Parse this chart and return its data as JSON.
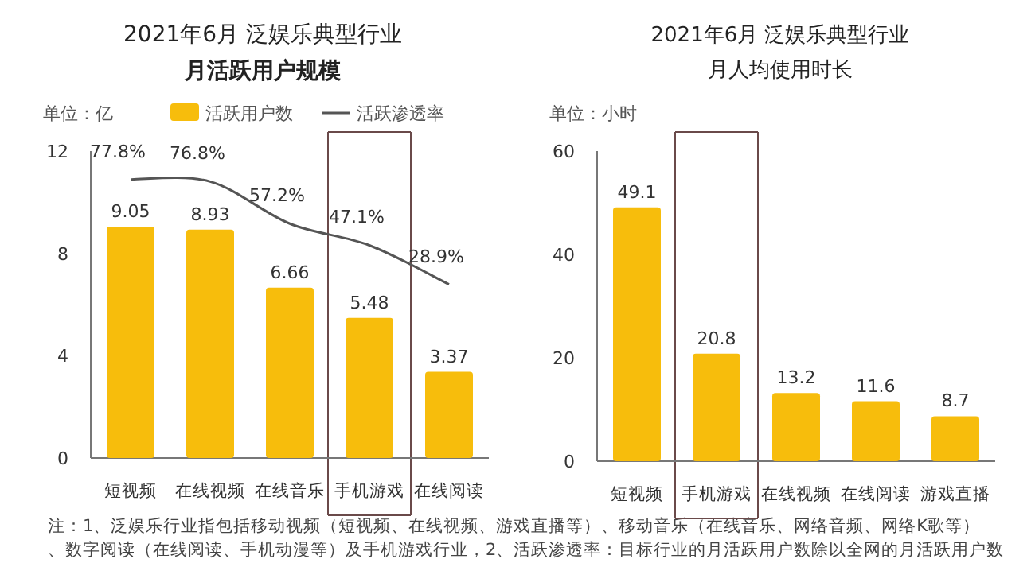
{
  "chart_data": [
    {
      "type": "bar",
      "title": "2021年6月 泛娱乐典型行业",
      "subtitle": "月活跃用户规模",
      "ylabel": "单位：亿",
      "categories": [
        "短视频",
        "在线视频",
        "在线音乐",
        "手机游戏",
        "在线阅读"
      ],
      "series": [
        {
          "name": "活跃用户数",
          "color": "#f7bd0c",
          "values": [
            9.05,
            8.93,
            6.66,
            5.48,
            3.37
          ]
        },
        {
          "name": "活跃渗透率",
          "type": "line",
          "axis": "y2",
          "color": "#555555",
          "values": [
            77.8,
            76.8,
            57.2,
            47.1,
            28.9
          ],
          "value_labels": [
            "77.8%",
            "76.8%",
            "57.2%",
            "47.1%",
            "28.9%"
          ]
        }
      ],
      "ylim": [
        0,
        12
      ],
      "yticks": [
        0,
        4,
        8,
        12
      ],
      "y2lim": [
        -52,
        91
      ],
      "data_labels": true,
      "legend": "top",
      "annotations": [
        "注：1、泛娱乐行业指包括移动视频（短视频、在线视频、游戏直播等）、移动音乐（在线音乐、网络音频、网络K歌等）、数字阅读（在线阅读、手机动漫等）及手机游戏行业，2、活跃渗透率：目标行业的月活跃用户数除以全网的月活跃用户数"
      ]
    },
    {
      "type": "bar",
      "title": "2021年6月 泛娱乐典型行业",
      "subtitle": "月人均使用时长",
      "ylabel": "单位：小时",
      "categories": [
        "短视频",
        "手机游戏",
        "在线视频",
        "在线阅读",
        "游戏直播"
      ],
      "series": [
        {
          "color": "#f7bd0c",
          "values": [
            49.1,
            20.8,
            13.2,
            11.6,
            8.7
          ]
        }
      ],
      "ylim": [
        0,
        60
      ],
      "yticks": [
        0,
        20,
        40,
        60
      ],
      "data_labels": true
    }
  ]
}
